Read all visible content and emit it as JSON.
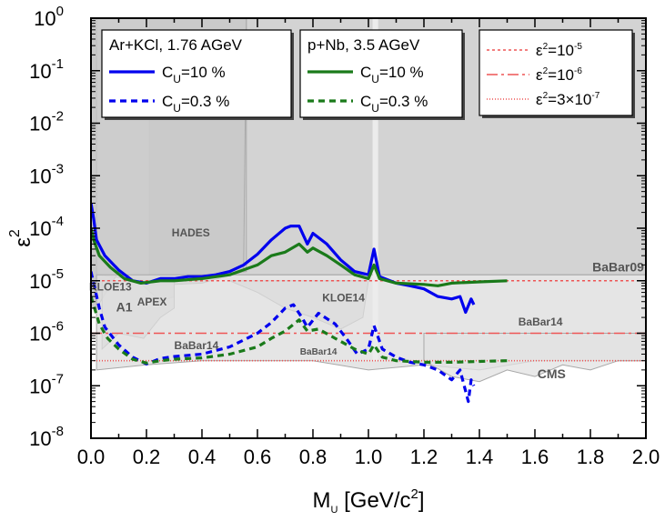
{
  "chart_data": {
    "type": "line",
    "xlabel_main": "M",
    "xlabel_sub": "U",
    "xlabel_rest": " [GeV/c",
    "xlabel_sup": "2",
    "xlabel_end": "]",
    "ylabel_main": "ε",
    "ylabel_sup": "2",
    "xlim": [
      0.0,
      2.0
    ],
    "ylim": [
      1e-08,
      1
    ],
    "yscale": "log",
    "x_ticks": [
      "0.0",
      "0.2",
      "0.4",
      "0.6",
      "0.8",
      "1.0",
      "1.2",
      "1.4",
      "1.6",
      "1.8",
      "2.0"
    ],
    "y_ticks": [
      {
        "base": "10",
        "exp": "0",
        "value": 1
      },
      {
        "base": "10",
        "exp": "-1",
        "value": 0.1
      },
      {
        "base": "10",
        "exp": "-2",
        "value": 0.01
      },
      {
        "base": "10",
        "exp": "-3",
        "value": 0.001
      },
      {
        "base": "10",
        "exp": "-4",
        "value": 0.0001
      },
      {
        "base": "10",
        "exp": "-5",
        "value": 1e-05
      },
      {
        "base": "10",
        "exp": "-6",
        "value": 1e-06
      },
      {
        "base": "10",
        "exp": "-7",
        "value": 1e-07
      },
      {
        "base": "10",
        "exp": "-8",
        "value": 1e-08
      }
    ],
    "excluded_regions": [
      {
        "label": "BaBar09",
        "points": [
          [
            0.21,
            1
          ],
          [
            2.0,
            1
          ],
          [
            2.0,
            1.3e-05
          ],
          [
            0.21,
            1.3e-05
          ]
        ]
      },
      {
        "label": "HADES",
        "points": [
          [
            0.02,
            1
          ],
          [
            0.56,
            1
          ],
          [
            0.56,
            1.5e-05
          ],
          [
            0.4,
            1.3e-05
          ],
          [
            0.2,
            1e-05
          ],
          [
            0.02,
            1.3e-05
          ]
        ]
      },
      {
        "label": "",
        "points": [
          [
            0,
            1
          ],
          [
            0.02,
            1
          ],
          [
            0.02,
            3e-06
          ],
          [
            0,
            3e-06
          ]
        ]
      },
      {
        "label": "KLOE13",
        "points": [
          [
            0.02,
            3e-06
          ],
          [
            0.1,
            1.5e-05
          ],
          [
            0.2,
            8e-06
          ],
          [
            0.4,
            9e-06
          ],
          [
            0.55,
            1.5e-05
          ],
          [
            0.56,
            1
          ],
          [
            0.0,
            1
          ],
          [
            0,
            3e-06
          ]
        ]
      },
      {
        "label": "APEX",
        "points": [
          [
            0.17,
            1e-05
          ],
          [
            0.25,
            4e-06
          ],
          [
            0.3,
            5e-06
          ],
          [
            0.3,
            1e-05
          ]
        ]
      },
      {
        "label": "A1",
        "points": [
          [
            0.04,
            5e-07
          ],
          [
            0.1,
            1e-06
          ],
          [
            0.19,
            8e-07
          ],
          [
            0.25,
            2e-06
          ],
          [
            0.3,
            3e-06
          ],
          [
            0.3,
            1e-05
          ],
          [
            0.04,
            1e-05
          ]
        ]
      },
      {
        "label": "KLOE14",
        "points": [
          [
            0.5,
            1e-05
          ],
          [
            0.6,
            6e-06
          ],
          [
            0.7,
            3e-06
          ],
          [
            0.8,
            2e-06
          ],
          [
            0.9,
            1.2e-06
          ],
          [
            0.98,
            2e-06
          ],
          [
            1.0,
            1e-05
          ]
        ]
      },
      {
        "label": "BaBar14",
        "points": [
          [
            0.02,
            2e-07
          ],
          [
            0.2,
            2.5e-07
          ],
          [
            0.4,
            3e-07
          ],
          [
            0.6,
            3e-07
          ],
          [
            0.8,
            3e-07
          ],
          [
            1.0,
            2e-07
          ],
          [
            1.2,
            2.5e-07
          ],
          [
            1.4,
            2e-07
          ],
          [
            1.6,
            3e-07
          ],
          [
            1.8,
            3e-07
          ],
          [
            2.0,
            3e-07
          ],
          [
            2.0,
            1.3e-05
          ],
          [
            0.02,
            1.3e-05
          ]
        ]
      },
      {
        "label": "CMS",
        "points": [
          [
            1.2,
            3e-07
          ],
          [
            1.3,
            1.5e-07
          ],
          [
            1.4,
            1.2e-07
          ],
          [
            1.5,
            2e-07
          ],
          [
            1.6,
            1.5e-07
          ],
          [
            1.7,
            2.5e-07
          ],
          [
            1.8,
            2e-07
          ],
          [
            1.9,
            3e-07
          ],
          [
            2.0,
            3e-07
          ],
          [
            2.0,
            1e-06
          ],
          [
            1.2,
            1e-06
          ]
        ]
      }
    ],
    "region_labels": [
      {
        "text": "HADES",
        "x": 0.36,
        "y": 7e-05
      },
      {
        "text": "BaBar09",
        "x": 1.9,
        "y": 1.5e-05
      },
      {
        "text": "KLOE13",
        "x": 0.07,
        "y": 6.5e-06
      },
      {
        "text": "A1",
        "x": 0.12,
        "y": 2.6e-06
      },
      {
        "text": "APEX",
        "x": 0.22,
        "y": 3.4e-06
      },
      {
        "text": "KLOE14",
        "x": 0.91,
        "y": 4e-06
      },
      {
        "text": "BaBar14",
        "x": 1.62,
        "y": 1.4e-06
      },
      {
        "text": "BaBar14",
        "x": 0.38,
        "y": 5e-07
      },
      {
        "text": "BaBar14",
        "x": 0.82,
        "y": 3.9e-07
      },
      {
        "text": "CMS",
        "x": 1.66,
        "y": 1.4e-07
      }
    ],
    "reference_lines": [
      {
        "label_base": "ε",
        "label_sup": "2",
        "label_mid": "=10",
        "label_exp": "-5",
        "label_rest": "",
        "label_exp2": "",
        "y": 1e-05,
        "dash": "3,3"
      },
      {
        "label_base": "ε",
        "label_sup": "2",
        "label_mid": "=10",
        "label_exp": "-6",
        "label_rest": "",
        "label_exp2": "",
        "y": 1e-06,
        "dash": "12,4,3,4"
      },
      {
        "label_base": "ε",
        "label_sup": "2",
        "label_mid": "=3×10",
        "label_exp": "-7",
        "label_rest": "",
        "label_exp2": "",
        "y": 3e-07,
        "dash": "1,2"
      }
    ],
    "series": [
      {
        "group": "ArKCl",
        "name": "C",
        "name_sub": "U",
        "name_rest": "=10 %",
        "color": "#0000ee",
        "dash": "",
        "points": [
          [
            0.0,
            0.0003
          ],
          [
            0.01,
            0.00015
          ],
          [
            0.02,
            6e-05
          ],
          [
            0.05,
            3e-05
          ],
          [
            0.1,
            1.6e-05
          ],
          [
            0.15,
            1e-05
          ],
          [
            0.2,
            9e-06
          ],
          [
            0.25,
            1.1e-05
          ],
          [
            0.3,
            1.1e-05
          ],
          [
            0.35,
            1.2e-05
          ],
          [
            0.4,
            1.2e-05
          ],
          [
            0.45,
            1.3e-05
          ],
          [
            0.5,
            1.5e-05
          ],
          [
            0.55,
            2e-05
          ],
          [
            0.6,
            3.2e-05
          ],
          [
            0.65,
            6e-05
          ],
          [
            0.7,
            0.0001
          ],
          [
            0.72,
            0.00011
          ],
          [
            0.75,
            0.00011
          ],
          [
            0.78,
            5e-05
          ],
          [
            0.8,
            8e-05
          ],
          [
            0.85,
            5e-05
          ],
          [
            0.9,
            2.5e-05
          ],
          [
            0.95,
            1.5e-05
          ],
          [
            1.0,
            1.3e-05
          ],
          [
            1.02,
            4e-05
          ],
          [
            1.04,
            1.2e-05
          ],
          [
            1.1,
            9e-06
          ],
          [
            1.15,
            8e-06
          ],
          [
            1.2,
            7e-06
          ],
          [
            1.25,
            5e-06
          ],
          [
            1.3,
            4.5e-06
          ],
          [
            1.33,
            5e-06
          ],
          [
            1.35,
            2.5e-06
          ],
          [
            1.37,
            4.5e-06
          ],
          [
            1.38,
            3.5e-06
          ]
        ]
      },
      {
        "group": "ArKCl",
        "name": "C",
        "name_sub": "U",
        "name_rest": "=0.3 %",
        "color": "#0000ee",
        "dash": "7,5",
        "points": [
          [
            0.0,
            1.5e-05
          ],
          [
            0.03,
            3e-06
          ],
          [
            0.05,
            1.3e-06
          ],
          [
            0.1,
            6e-07
          ],
          [
            0.15,
            3.5e-07
          ],
          [
            0.2,
            2.6e-07
          ],
          [
            0.25,
            3.3e-07
          ],
          [
            0.3,
            3.6e-07
          ],
          [
            0.4,
            4e-07
          ],
          [
            0.5,
            5.5e-07
          ],
          [
            0.6,
            1e-06
          ],
          [
            0.65,
            1.6e-06
          ],
          [
            0.7,
            3e-06
          ],
          [
            0.73,
            3.5e-06
          ],
          [
            0.76,
            2e-06
          ],
          [
            0.78,
            1.3e-06
          ],
          [
            0.82,
            2.4e-06
          ],
          [
            0.88,
            1.5e-06
          ],
          [
            0.92,
            8e-07
          ],
          [
            0.96,
            4e-07
          ],
          [
            1.0,
            5e-07
          ],
          [
            1.02,
            1.4e-06
          ],
          [
            1.05,
            5e-07
          ],
          [
            1.1,
            3.5e-07
          ],
          [
            1.15,
            2.8e-07
          ],
          [
            1.2,
            2.5e-07
          ],
          [
            1.25,
            2e-07
          ],
          [
            1.3,
            1.3e-07
          ],
          [
            1.33,
            2e-07
          ],
          [
            1.36,
            5e-08
          ],
          [
            1.37,
            1.3e-07
          ],
          [
            1.38,
            1e-07
          ]
        ]
      },
      {
        "group": "pNb",
        "name": "C",
        "name_sub": "U",
        "name_rest": "=10 %",
        "color": "#1a7a1a",
        "dash": "",
        "points": [
          [
            0.0,
            0.0001
          ],
          [
            0.01,
            6e-05
          ],
          [
            0.03,
            3e-05
          ],
          [
            0.07,
            1.8e-05
          ],
          [
            0.12,
            1.1e-05
          ],
          [
            0.18,
            9e-06
          ],
          [
            0.25,
            1e-05
          ],
          [
            0.3,
            1e-05
          ],
          [
            0.4,
            1.1e-05
          ],
          [
            0.5,
            1.3e-05
          ],
          [
            0.6,
            2e-05
          ],
          [
            0.65,
            3e-05
          ],
          [
            0.7,
            3.5e-05
          ],
          [
            0.75,
            5e-05
          ],
          [
            0.78,
            3.5e-05
          ],
          [
            0.8,
            4.2e-05
          ],
          [
            0.85,
            3e-05
          ],
          [
            0.9,
            2e-05
          ],
          [
            0.95,
            1.3e-05
          ],
          [
            1.0,
            1.1e-05
          ],
          [
            1.02,
            2e-05
          ],
          [
            1.04,
            1.1e-05
          ],
          [
            1.1,
            9e-06
          ],
          [
            1.2,
            8.5e-06
          ],
          [
            1.25,
            8e-06
          ],
          [
            1.3,
            9e-06
          ],
          [
            1.4,
            9.5e-06
          ],
          [
            1.5,
            1e-05
          ]
        ]
      },
      {
        "group": "pNb",
        "name": "C",
        "name_sub": "U",
        "name_rest": "=0.3 %",
        "color": "#1a7a1a",
        "dash": "7,5",
        "points": [
          [
            0.0,
            5e-06
          ],
          [
            0.03,
            1.5e-06
          ],
          [
            0.06,
            8e-07
          ],
          [
            0.1,
            5e-07
          ],
          [
            0.15,
            3.2e-07
          ],
          [
            0.2,
            2.7e-07
          ],
          [
            0.25,
            3e-07
          ],
          [
            0.3,
            3.2e-07
          ],
          [
            0.4,
            3.4e-07
          ],
          [
            0.5,
            4e-07
          ],
          [
            0.6,
            5.5e-07
          ],
          [
            0.65,
            8e-07
          ],
          [
            0.7,
            1.1e-06
          ],
          [
            0.75,
            1.8e-06
          ],
          [
            0.78,
            1.1e-06
          ],
          [
            0.82,
            1.2e-06
          ],
          [
            0.88,
            8e-07
          ],
          [
            0.95,
            5e-07
          ],
          [
            1.0,
            4e-07
          ],
          [
            1.02,
            6e-07
          ],
          [
            1.05,
            3.5e-07
          ],
          [
            1.1,
            3e-07
          ],
          [
            1.2,
            2.8e-07
          ],
          [
            1.3,
            2.8e-07
          ],
          [
            1.4,
            2.9e-07
          ],
          [
            1.5,
            3e-07
          ]
        ]
      }
    ],
    "legend_boxes": [
      {
        "title": "Ar+KCl, 1.76 AGeV",
        "group": "ArKCl"
      },
      {
        "title": "p+Nb, 3.5 AGeV",
        "group": "pNb"
      }
    ]
  }
}
